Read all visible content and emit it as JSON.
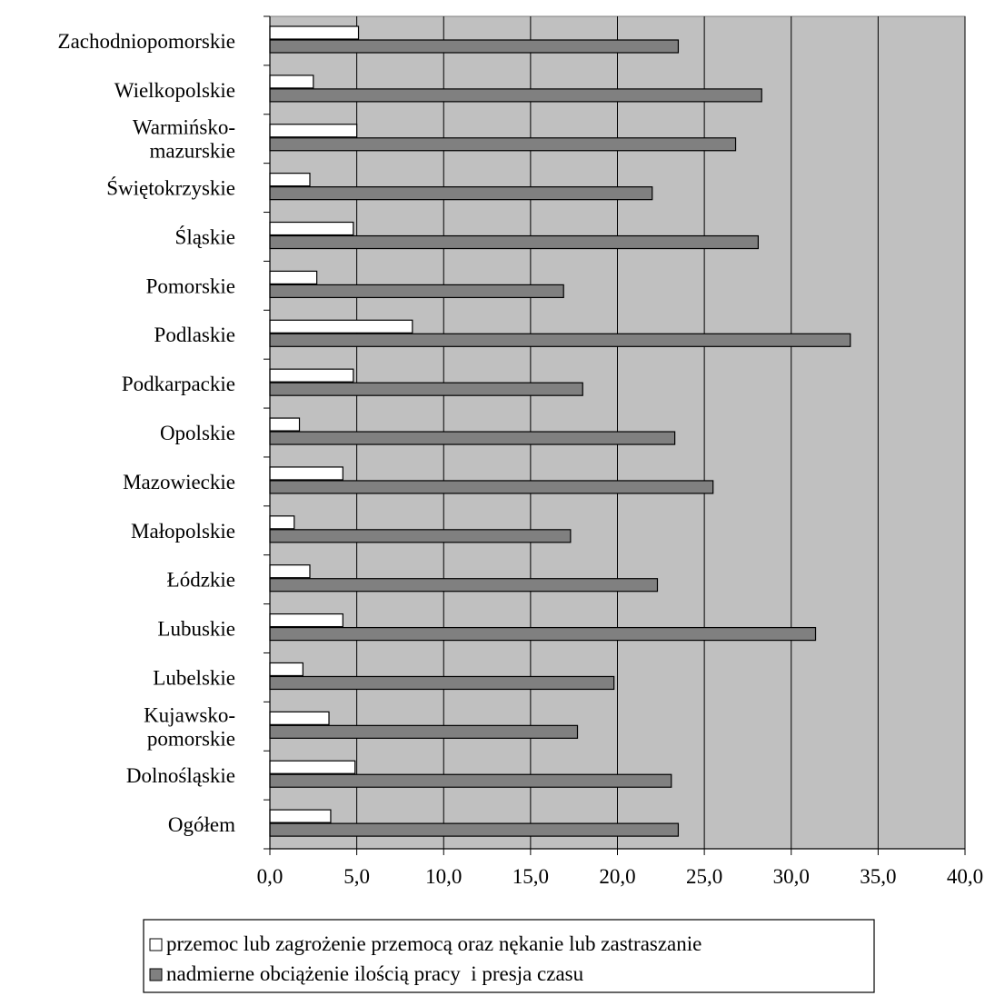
{
  "chart_data": {
    "type": "bar",
    "orientation": "horizontal",
    "categories": [
      [
        "Zachodniopomorskie"
      ],
      [
        "Wielkopolskie"
      ],
      [
        "Warmińsko-",
        "mazurskie"
      ],
      [
        "Świętokrzyskie"
      ],
      [
        "Śląskie"
      ],
      [
        "Pomorskie"
      ],
      [
        "Podlaskie"
      ],
      [
        "Podkarpackie"
      ],
      [
        "Opolskie"
      ],
      [
        "Mazowieckie"
      ],
      [
        "Małopolskie"
      ],
      [
        "Łódzkie"
      ],
      [
        "Lubuskie"
      ],
      [
        "Lubelskie"
      ],
      [
        "Kujawsko-",
        "pomorskie"
      ],
      [
        "Dolnośląskie"
      ],
      [
        "Ogółem"
      ]
    ],
    "series": [
      {
        "name": "przemoc lub zagrożenie przemocą oraz nękanie lub zastraszanie",
        "color": "#ffffff",
        "values": [
          5.1,
          2.5,
          5.0,
          2.3,
          4.8,
          2.7,
          8.2,
          4.8,
          1.7,
          4.2,
          1.4,
          2.3,
          4.2,
          1.9,
          3.4,
          4.9,
          3.5
        ]
      },
      {
        "name": "nadmierne obciążenie ilością pracy  i presja czasu",
        "color": "#808080",
        "values": [
          23.5,
          28.3,
          26.8,
          22.0,
          28.1,
          16.9,
          33.4,
          18.0,
          23.3,
          25.5,
          17.3,
          22.3,
          31.4,
          19.8,
          17.7,
          23.1,
          23.5
        ]
      }
    ],
    "xlim": [
      0,
      40
    ],
    "x_ticks": [
      "0,0",
      "5,0",
      "10,0",
      "15,0",
      "20,0",
      "25,0",
      "30,0",
      "35,0",
      "40,0"
    ],
    "plot_background": "#c0c0c0",
    "vertical_grid": true,
    "legend_position": "bottom"
  }
}
